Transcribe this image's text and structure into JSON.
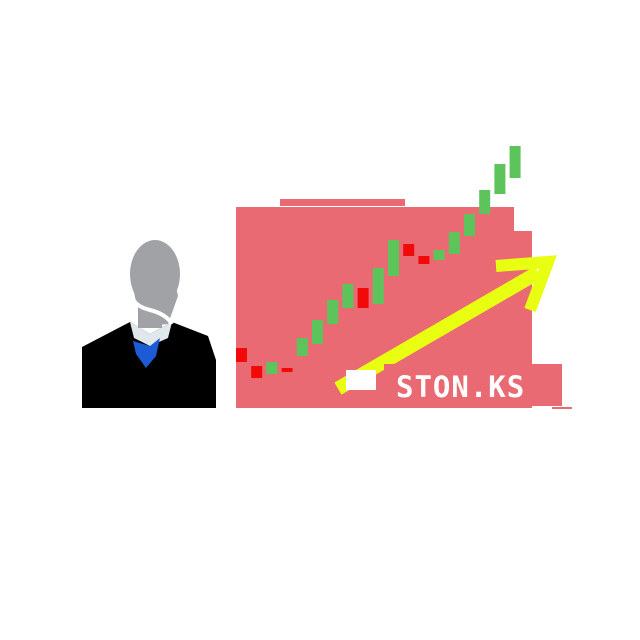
{
  "caption": {
    "text": "STON.KS"
  },
  "colors": {
    "chart_background": "#e96a72",
    "caption_background": "#e96a72",
    "arrow": "#e8ff12",
    "candle_up": "#5cc45a",
    "candle_down": "#f20a0a",
    "suit": "#000000",
    "tie": "#1d5bd6",
    "head": "#a0a2a6",
    "shirt": "#e0e8ee"
  },
  "chart_data": {
    "type": "candlestick",
    "trend": "up",
    "candles": [
      {
        "dir": "down",
        "open": 60,
        "close": 46
      },
      {
        "dir": "down",
        "open": 42,
        "close": 30
      },
      {
        "dir": "up",
        "open": 34,
        "close": 46
      },
      {
        "dir": "down",
        "open": 40,
        "close": 36
      },
      {
        "dir": "up",
        "open": 52,
        "close": 70
      },
      {
        "dir": "up",
        "open": 64,
        "close": 88
      },
      {
        "dir": "up",
        "open": 84,
        "close": 108
      },
      {
        "dir": "up",
        "open": 100,
        "close": 124
      },
      {
        "dir": "down",
        "open": 120,
        "close": 100
      },
      {
        "dir": "up",
        "open": 104,
        "close": 140
      },
      {
        "dir": "up",
        "open": 132,
        "close": 168
      },
      {
        "dir": "down",
        "open": 164,
        "close": 152
      },
      {
        "dir": "down",
        "open": 152,
        "close": 144
      },
      {
        "dir": "up",
        "open": 148,
        "close": 158
      },
      {
        "dir": "up",
        "open": 154,
        "close": 176
      },
      {
        "dir": "up",
        "open": 172,
        "close": 194
      },
      {
        "dir": "up",
        "open": 194,
        "close": 218
      },
      {
        "dir": "up",
        "open": 214,
        "close": 244
      },
      {
        "dir": "up",
        "open": 230,
        "close": 262
      }
    ]
  }
}
